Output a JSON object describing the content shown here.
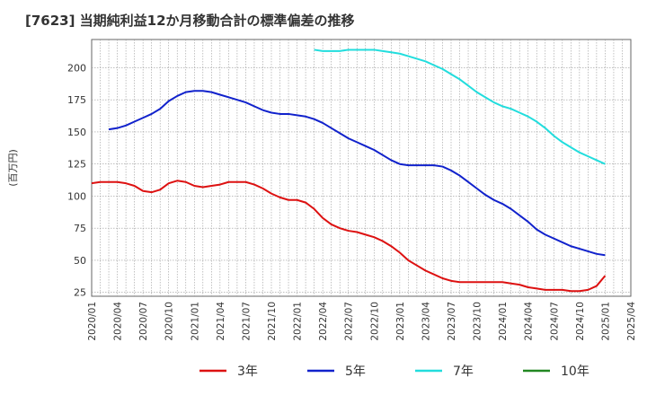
{
  "title": "[7623]  当期純利益12か月移動合計の標準偏差の推移",
  "chart_data": {
    "type": "line",
    "ylabel": "(百万円)",
    "xlabel": "",
    "ylim": [
      22,
      222
    ],
    "yticks": [
      25,
      50,
      75,
      100,
      125,
      150,
      175,
      200
    ],
    "xticks": [
      "2020/01",
      "2020/04",
      "2020/07",
      "2020/10",
      "2021/01",
      "2021/04",
      "2021/07",
      "2021/10",
      "2022/01",
      "2022/04",
      "2022/07",
      "2022/10",
      "2023/01",
      "2023/04",
      "2023/07",
      "2023/10",
      "2024/01",
      "2024/04",
      "2024/07",
      "2024/10",
      "2025/01",
      "2025/04"
    ],
    "grid": true,
    "legend_position": "bottom",
    "series": [
      {
        "name": "3年",
        "color": "#dd1111",
        "points": [
          [
            "2020/01",
            110
          ],
          [
            "2020/02",
            111
          ],
          [
            "2020/03",
            111
          ],
          [
            "2020/04",
            111
          ],
          [
            "2020/05",
            110
          ],
          [
            "2020/06",
            108
          ],
          [
            "2020/07",
            104
          ],
          [
            "2020/08",
            103
          ],
          [
            "2020/09",
            105
          ],
          [
            "2020/10",
            110
          ],
          [
            "2020/11",
            112
          ],
          [
            "2020/12",
            111
          ],
          [
            "2021/01",
            108
          ],
          [
            "2021/02",
            107
          ],
          [
            "2021/03",
            108
          ],
          [
            "2021/04",
            109
          ],
          [
            "2021/05",
            111
          ],
          [
            "2021/06",
            111
          ],
          [
            "2021/07",
            111
          ],
          [
            "2021/08",
            109
          ],
          [
            "2021/09",
            106
          ],
          [
            "2021/10",
            102
          ],
          [
            "2021/11",
            99
          ],
          [
            "2021/12",
            97
          ],
          [
            "2022/01",
            97
          ],
          [
            "2022/02",
            95
          ],
          [
            "2022/03",
            90
          ],
          [
            "2022/04",
            83
          ],
          [
            "2022/05",
            78
          ],
          [
            "2022/06",
            75
          ],
          [
            "2022/07",
            73
          ],
          [
            "2022/08",
            72
          ],
          [
            "2022/09",
            70
          ],
          [
            "2022/10",
            68
          ],
          [
            "2022/11",
            65
          ],
          [
            "2022/12",
            61
          ],
          [
            "2023/01",
            56
          ],
          [
            "2023/02",
            50
          ],
          [
            "2023/03",
            46
          ],
          [
            "2023/04",
            42
          ],
          [
            "2023/05",
            39
          ],
          [
            "2023/06",
            36
          ],
          [
            "2023/07",
            34
          ],
          [
            "2023/08",
            33
          ],
          [
            "2023/09",
            33
          ],
          [
            "2023/10",
            33
          ],
          [
            "2023/11",
            33
          ],
          [
            "2023/12",
            33
          ],
          [
            "2024/01",
            33
          ],
          [
            "2024/02",
            32
          ],
          [
            "2024/03",
            31
          ],
          [
            "2024/04",
            29
          ],
          [
            "2024/05",
            28
          ],
          [
            "2024/06",
            27
          ],
          [
            "2024/07",
            27
          ],
          [
            "2024/08",
            27
          ],
          [
            "2024/09",
            26
          ],
          [
            "2024/10",
            26
          ],
          [
            "2024/11",
            27
          ],
          [
            "2024/12",
            30
          ],
          [
            "2025/01",
            38
          ]
        ]
      },
      {
        "name": "5年",
        "color": "#1122cc",
        "points": [
          [
            "2020/03",
            152
          ],
          [
            "2020/04",
            153
          ],
          [
            "2020/05",
            155
          ],
          [
            "2020/06",
            158
          ],
          [
            "2020/07",
            161
          ],
          [
            "2020/08",
            164
          ],
          [
            "2020/09",
            168
          ],
          [
            "2020/10",
            174
          ],
          [
            "2020/11",
            178
          ],
          [
            "2020/12",
            181
          ],
          [
            "2021/01",
            182
          ],
          [
            "2021/02",
            182
          ],
          [
            "2021/03",
            181
          ],
          [
            "2021/04",
            179
          ],
          [
            "2021/05",
            177
          ],
          [
            "2021/06",
            175
          ],
          [
            "2021/07",
            173
          ],
          [
            "2021/08",
            170
          ],
          [
            "2021/09",
            167
          ],
          [
            "2021/10",
            165
          ],
          [
            "2021/11",
            164
          ],
          [
            "2021/12",
            164
          ],
          [
            "2022/01",
            163
          ],
          [
            "2022/02",
            162
          ],
          [
            "2022/03",
            160
          ],
          [
            "2022/04",
            157
          ],
          [
            "2022/05",
            153
          ],
          [
            "2022/06",
            149
          ],
          [
            "2022/07",
            145
          ],
          [
            "2022/08",
            142
          ],
          [
            "2022/09",
            139
          ],
          [
            "2022/10",
            136
          ],
          [
            "2022/11",
            132
          ],
          [
            "2022/12",
            128
          ],
          [
            "2023/01",
            125
          ],
          [
            "2023/02",
            124
          ],
          [
            "2023/03",
            124
          ],
          [
            "2023/04",
            124
          ],
          [
            "2023/05",
            124
          ],
          [
            "2023/06",
            123
          ],
          [
            "2023/07",
            120
          ],
          [
            "2023/08",
            116
          ],
          [
            "2023/09",
            111
          ],
          [
            "2023/10",
            106
          ],
          [
            "2023/11",
            101
          ],
          [
            "2023/12",
            97
          ],
          [
            "2024/01",
            94
          ],
          [
            "2024/02",
            90
          ],
          [
            "2024/03",
            85
          ],
          [
            "2024/04",
            80
          ],
          [
            "2024/05",
            74
          ],
          [
            "2024/06",
            70
          ],
          [
            "2024/07",
            67
          ],
          [
            "2024/08",
            64
          ],
          [
            "2024/09",
            61
          ],
          [
            "2024/10",
            59
          ],
          [
            "2024/11",
            57
          ],
          [
            "2024/12",
            55
          ],
          [
            "2025/01",
            54
          ]
        ]
      },
      {
        "name": "7年",
        "color": "#22dddd",
        "points": [
          [
            "2022/03",
            214
          ],
          [
            "2022/04",
            213
          ],
          [
            "2022/05",
            213
          ],
          [
            "2022/06",
            213
          ],
          [
            "2022/07",
            214
          ],
          [
            "2022/08",
            214
          ],
          [
            "2022/09",
            214
          ],
          [
            "2022/10",
            214
          ],
          [
            "2022/11",
            213
          ],
          [
            "2022/12",
            212
          ],
          [
            "2023/01",
            211
          ],
          [
            "2023/02",
            209
          ],
          [
            "2023/03",
            207
          ],
          [
            "2023/04",
            205
          ],
          [
            "2023/05",
            202
          ],
          [
            "2023/06",
            199
          ],
          [
            "2023/07",
            195
          ],
          [
            "2023/08",
            191
          ],
          [
            "2023/09",
            186
          ],
          [
            "2023/10",
            181
          ],
          [
            "2023/11",
            177
          ],
          [
            "2023/12",
            173
          ],
          [
            "2024/01",
            170
          ],
          [
            "2024/02",
            168
          ],
          [
            "2024/03",
            165
          ],
          [
            "2024/04",
            162
          ],
          [
            "2024/05",
            158
          ],
          [
            "2024/06",
            153
          ],
          [
            "2024/07",
            147
          ],
          [
            "2024/08",
            142
          ],
          [
            "2024/09",
            138
          ],
          [
            "2024/10",
            134
          ],
          [
            "2024/11",
            131
          ],
          [
            "2024/12",
            128
          ],
          [
            "2025/01",
            125
          ]
        ]
      },
      {
        "name": "10年",
        "color": "#228822",
        "points": []
      }
    ]
  }
}
